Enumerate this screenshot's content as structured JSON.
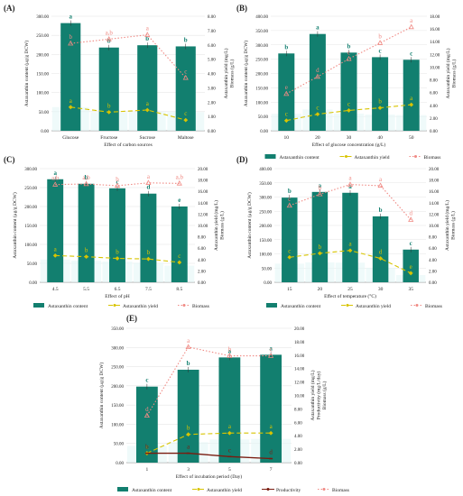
{
  "colors": {
    "content": "#127f6f",
    "yield": "#d8c400",
    "biomass": "#f08a84",
    "productivity": "#7a1c10",
    "axis": "#999999",
    "text": "#222222",
    "grid": "#e6e6e6"
  },
  "chart_data": [
    {
      "panel": "(A)",
      "type": "bar",
      "xlabel": "Effect of carbon sources",
      "ylabel": "Astaxanthin content (μg/g DCW)",
      "y2label": "Astaxanthin yield (mg/L)\nBiomass (g/L)",
      "categories": [
        "Glucose",
        "Fructose",
        "Sucrose",
        "Maltose"
      ],
      "ylim": [
        0,
        300
      ],
      "yticks": [
        "0.00",
        "50.00",
        "100.00",
        "150.00",
        "200.00",
        "250.00",
        "300.00"
      ],
      "y2lim": [
        0,
        8
      ],
      "y2ticks": [
        "0.00",
        "1.00",
        "2.00",
        "3.00",
        "4.00",
        "5.00",
        "6.00",
        "7.00",
        "8.00"
      ],
      "series": [
        {
          "key": "content",
          "kind": "bar",
          "axis": "left",
          "values": [
            282,
            218,
            224,
            221
          ],
          "labels": [
            "a",
            "b",
            "b",
            "b"
          ]
        },
        {
          "key": "biomass",
          "kind": "line",
          "axis": "right",
          "values": [
            6.1,
            6.4,
            6.7,
            3.7
          ],
          "labels": [
            "b",
            "a,b",
            "a",
            "c"
          ]
        },
        {
          "key": "yield",
          "kind": "line",
          "axis": "right",
          "values": [
            1.65,
            1.3,
            1.45,
            0.75
          ],
          "labels": [
            "a",
            "b",
            "a",
            "c"
          ]
        }
      ],
      "legend": []
    },
    {
      "panel": "(B)",
      "type": "bar",
      "xlabel": "Effect of glucose concentration (g/L)",
      "ylabel": "Astaxanthin content (μg/g DCW)",
      "y2label": "Astaxanthin yield (mg/L)\nBiomass (g/L)",
      "categories": [
        "10",
        "20",
        "30",
        "40",
        "50"
      ],
      "ylim": [
        0,
        400
      ],
      "yticks": [
        "0.00",
        "50.00",
        "100.00",
        "150.00",
        "200.00",
        "250.00",
        "300.00",
        "350.00",
        "400.00"
      ],
      "y2lim": [
        0,
        18
      ],
      "y2ticks": [
        "0.00",
        "2.00",
        "4.00",
        "6.00",
        "8.00",
        "10.00",
        "12.00",
        "14.00",
        "16.00",
        "18.00"
      ],
      "series": [
        {
          "key": "content",
          "kind": "bar",
          "axis": "left",
          "values": [
            270,
            338,
            273,
            257,
            248
          ],
          "labels": [
            "b",
            "a",
            "b",
            "c",
            "c"
          ]
        },
        {
          "key": "biomass",
          "kind": "line",
          "axis": "right",
          "values": [
            5.8,
            8.5,
            11.3,
            13.8,
            16.3
          ],
          "labels": [
            "e",
            "d",
            "c",
            "b",
            "a"
          ]
        },
        {
          "key": "yield",
          "kind": "line",
          "axis": "right",
          "values": [
            1.6,
            2.6,
            3.2,
            3.6,
            4.1
          ],
          "labels": [
            "c",
            "c",
            "c",
            "b",
            "a"
          ]
        }
      ],
      "legend": [
        "Astaxanthin content",
        "Astaxanthin yield",
        "Biomass"
      ]
    },
    {
      "panel": "(C)",
      "type": "bar",
      "xlabel": "Effect of pH",
      "ylabel": "Astaxanthin content (μg/g DCW)",
      "y2label": "Astaxanthin yield (mg/L)\nBiomass (g/L)",
      "categories": [
        "4.5",
        "5.5",
        "6.5",
        "7.5",
        "8.5"
      ],
      "ylim": [
        0,
        300
      ],
      "yticks": [
        "0.00",
        "50.00",
        "100.00",
        "150.00",
        "200.00",
        "250.00",
        "300.00"
      ],
      "y2lim": [
        0,
        20
      ],
      "y2ticks": [
        "0.00",
        "2.00",
        "4.00",
        "6.00",
        "8.00",
        "10.00",
        "12.00",
        "14.00",
        "16.00",
        "18.00",
        "20.00"
      ],
      "series": [
        {
          "key": "content",
          "kind": "bar",
          "axis": "left",
          "values": [
            272,
            260,
            248,
            234,
            200
          ],
          "labels": [
            "a",
            "b",
            "c",
            "d",
            "e"
          ]
        },
        {
          "key": "biomass",
          "kind": "line",
          "axis": "right",
          "values": [
            17.2,
            17.3,
            17.0,
            17.5,
            17.4
          ],
          "labels": [
            "a,b",
            "a,b",
            "b",
            "a",
            "a,b"
          ]
        },
        {
          "key": "yield",
          "kind": "line",
          "axis": "right",
          "values": [
            4.7,
            4.5,
            4.2,
            4.1,
            3.5
          ],
          "labels": [
            "a",
            "b",
            "b",
            "b",
            "c"
          ]
        }
      ],
      "legend": [
        "Astaxanthin content",
        "Astaxanthin yield",
        "Biomass"
      ]
    },
    {
      "panel": "(D)",
      "type": "bar",
      "xlabel": "Effect of temperature (°C)",
      "ylabel": "Astaxanthin content (μg/g DCW)",
      "y2label": "Astaxanthin yield (mg/L)\nBiomass (g/L)",
      "categories": [
        "15",
        "20",
        "25",
        "30",
        "35"
      ],
      "ylim": [
        0,
        400
      ],
      "yticks": [
        "0.00",
        "50.00",
        "100.00",
        "150.00",
        "200.00",
        "250.00",
        "300.00",
        "350.00",
        "400.00"
      ],
      "y2lim": [
        0,
        20
      ],
      "y2ticks": [
        "0.00",
        "2.00",
        "4.00",
        "6.00",
        "8.00",
        "10.00",
        "12.00",
        "14.00",
        "16.00",
        "18.00",
        "20.00"
      ],
      "series": [
        {
          "key": "content",
          "kind": "bar",
          "axis": "left",
          "values": [
            298,
            318,
            315,
            232,
            115
          ],
          "labels": [
            "b",
            "a",
            "a",
            "b",
            "c"
          ]
        },
        {
          "key": "biomass",
          "kind": "line",
          "axis": "right",
          "values": [
            13.5,
            15.5,
            17.2,
            17.0,
            11.0
          ],
          "labels": [
            "c",
            "b",
            "a",
            "a",
            "d"
          ]
        },
        {
          "key": "yield",
          "kind": "line",
          "axis": "right",
          "values": [
            4.4,
            5.1,
            5.6,
            4.2,
            1.6
          ],
          "labels": [
            "c",
            "b",
            "a",
            "d",
            "e"
          ]
        }
      ],
      "legend": [
        "Astaxanthin content",
        "Astaxanthin yield",
        "Biomass"
      ]
    },
    {
      "panel": "(E)",
      "type": "bar",
      "xlabel": "Effect of incubation period (Day)",
      "ylabel": "Astaxanthin content (μg/g DCW)",
      "y2label": "Astaxanthin yield (mg/L)\nProductivity (mg/L/day)\nBiomass (g/L)",
      "categories": [
        "1",
        "3",
        "5",
        "7"
      ],
      "ylim": [
        0,
        350
      ],
      "yticks": [
        "0.00",
        "50.00",
        "100.00",
        "150.00",
        "200.00",
        "250.00",
        "300.00",
        "350.00"
      ],
      "y2lim": [
        0,
        20
      ],
      "y2ticks": [
        "0.00",
        "2.00",
        "4.00",
        "6.00",
        "8.00",
        "10.00",
        "12.00",
        "14.00",
        "16.00",
        "18.00",
        "20.00"
      ],
      "series": [
        {
          "key": "content",
          "kind": "bar",
          "axis": "left",
          "values": [
            198,
            242,
            274,
            281
          ],
          "labels": [
            "c",
            "b",
            "a",
            "a"
          ]
        },
        {
          "key": "biomass",
          "kind": "line",
          "axis": "right",
          "values": [
            7.0,
            17.2,
            15.9,
            15.9
          ],
          "labels": [
            "d",
            "a",
            "b",
            "c"
          ]
        },
        {
          "key": "yield",
          "kind": "line",
          "axis": "right",
          "values": [
            1.4,
            4.2,
            4.4,
            4.4
          ],
          "labels": [
            "c",
            "b",
            "a",
            "a"
          ]
        },
        {
          "key": "productivity",
          "kind": "line",
          "axis": "right",
          "values": [
            1.4,
            1.4,
            0.9,
            0.6
          ],
          "labels": [
            "b",
            "a",
            "c",
            "d"
          ]
        }
      ],
      "legend": [
        "Astaxanthin content",
        "Astaxanthin yield",
        "Productivity",
        "Biomass"
      ]
    }
  ]
}
